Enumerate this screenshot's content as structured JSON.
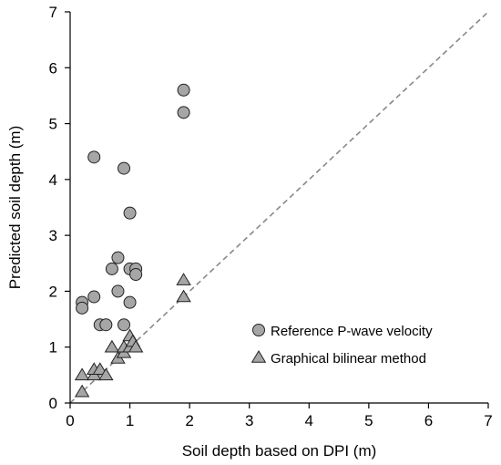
{
  "chart_data": {
    "type": "scatter",
    "xlabel": "Soil depth based on DPI (m)",
    "ylabel": "Predicted soil depth (m)",
    "xlim": [
      0,
      7
    ],
    "ylim": [
      0,
      7
    ],
    "xticks": [
      "0",
      "1",
      "2",
      "3",
      "4",
      "5",
      "6",
      "7"
    ],
    "yticks": [
      "0",
      "1",
      "2",
      "3",
      "4",
      "5",
      "6",
      "7"
    ],
    "grid": false,
    "legend_position": "bottom-right",
    "reference_line": {
      "type": "1:1",
      "style": "dashed",
      "color": "#888888"
    },
    "series": [
      {
        "name": "Reference P-wave velocity",
        "marker": "circle",
        "color": "#a6a6a6",
        "points": [
          {
            "x": 0.2,
            "y": 1.8
          },
          {
            "x": 0.2,
            "y": 1.7
          },
          {
            "x": 0.4,
            "y": 1.9
          },
          {
            "x": 0.4,
            "y": 4.4
          },
          {
            "x": 0.5,
            "y": 1.4
          },
          {
            "x": 0.6,
            "y": 1.4
          },
          {
            "x": 0.7,
            "y": 2.4
          },
          {
            "x": 0.8,
            "y": 2.6
          },
          {
            "x": 0.8,
            "y": 2.0
          },
          {
            "x": 0.9,
            "y": 4.2
          },
          {
            "x": 0.9,
            "y": 1.4
          },
          {
            "x": 1.0,
            "y": 3.4
          },
          {
            "x": 1.0,
            "y": 2.4
          },
          {
            "x": 1.0,
            "y": 1.8
          },
          {
            "x": 1.1,
            "y": 2.4
          },
          {
            "x": 1.1,
            "y": 2.3
          },
          {
            "x": 1.9,
            "y": 5.6
          },
          {
            "x": 1.9,
            "y": 5.2
          }
        ]
      },
      {
        "name": "Graphical bilinear method",
        "marker": "triangle",
        "color": "#a6a6a6",
        "points": [
          {
            "x": 0.2,
            "y": 0.5
          },
          {
            "x": 0.2,
            "y": 0.2
          },
          {
            "x": 0.4,
            "y": 0.5
          },
          {
            "x": 0.4,
            "y": 0.6
          },
          {
            "x": 0.5,
            "y": 0.6
          },
          {
            "x": 0.6,
            "y": 0.5
          },
          {
            "x": 0.7,
            "y": 1.0
          },
          {
            "x": 0.8,
            "y": 0.8
          },
          {
            "x": 0.9,
            "y": 0.9
          },
          {
            "x": 0.9,
            "y": 1.0
          },
          {
            "x": 1.0,
            "y": 1.2
          },
          {
            "x": 1.0,
            "y": 1.0
          },
          {
            "x": 1.05,
            "y": 1.1
          },
          {
            "x": 1.1,
            "y": 1.0
          },
          {
            "x": 1.9,
            "y": 2.2
          },
          {
            "x": 1.9,
            "y": 1.9
          }
        ]
      }
    ]
  }
}
